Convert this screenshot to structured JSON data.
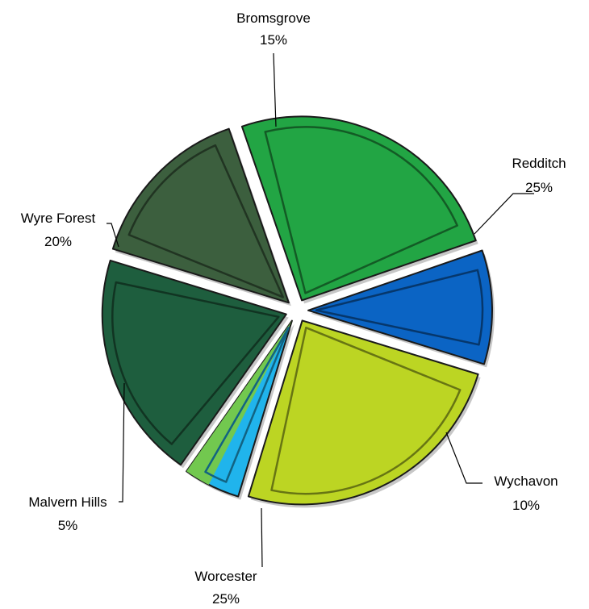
{
  "chart_data": {
    "type": "pie",
    "exploded": true,
    "slices": [
      {
        "name": "Redditch",
        "value": 25,
        "label_value": "25%",
        "color": "#22A544"
      },
      {
        "name": "Wychavon",
        "value": 10,
        "label_value": "10%",
        "color": "#0B64C4"
      },
      {
        "name": "Worcester",
        "value": 25,
        "label_value": "25%",
        "color": "#BCD523"
      },
      {
        "name": "Malvern Hills",
        "value": 5,
        "label_value": "5%",
        "color": "#20B4EC",
        "secondary_color": "#72C84F"
      },
      {
        "name": "Wyre Forest",
        "value": 20,
        "label_value": "20%",
        "color": "#1E5E3E"
      },
      {
        "name": "Bromsgrove",
        "value": 15,
        "label_value": "15%",
        "color": "#3C5F3E"
      }
    ]
  }
}
